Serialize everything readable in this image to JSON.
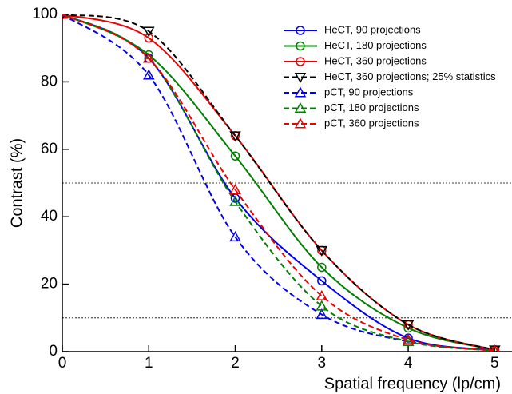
{
  "chart_data": {
    "type": "line",
    "x_label": "Spatial frequency (lp/cm)",
    "y_label": "Contrast (%)",
    "x": [
      0,
      1,
      2,
      3,
      4,
      5
    ],
    "xlim": [
      0,
      5.2
    ],
    "xticks": [
      0,
      1,
      2,
      3,
      4,
      5
    ],
    "ylim": [
      0,
      100
    ],
    "yticks": [
      0,
      20,
      40,
      60,
      80,
      100
    ],
    "hlines": [
      50,
      10
    ],
    "legend": "upper right",
    "series": [
      {
        "name": "HeCT, 90 projections",
        "color": "#0000ee",
        "marker": "circle",
        "dashed": false,
        "values": [
          100,
          87,
          45.5,
          21,
          4,
          0.5
        ]
      },
      {
        "name": "HeCT, 180 projections",
        "color": "#008000",
        "marker": "circle",
        "dashed": false,
        "values": [
          100,
          88,
          58,
          25,
          7,
          0.5
        ]
      },
      {
        "name": "HeCT, 360 projections",
        "color": "#ee0000",
        "marker": "circle",
        "dashed": false,
        "values": [
          100,
          93,
          64,
          30,
          8,
          0.5
        ]
      },
      {
        "name": "HeCT, 360 projections; 25% statistics",
        "color": "#000000",
        "marker": "triangle-down",
        "dashed": true,
        "values": [
          100,
          95,
          64,
          30,
          8,
          0.5
        ]
      },
      {
        "name": "pCT, 90 projections",
        "color": "#0000ee",
        "marker": "triangle-up",
        "dashed": true,
        "values": [
          100,
          82,
          34,
          11,
          3,
          0.3
        ]
      },
      {
        "name": "pCT, 180 projections",
        "color": "#008000",
        "marker": "triangle-up",
        "dashed": true,
        "values": [
          100,
          87,
          44.5,
          13.5,
          3,
          0.3
        ]
      },
      {
        "name": "pCT, 360 projections",
        "color": "#ee0000",
        "marker": "triangle-up",
        "dashed": true,
        "values": [
          100,
          87,
          48,
          16.5,
          3.5,
          0.3
        ]
      }
    ]
  }
}
